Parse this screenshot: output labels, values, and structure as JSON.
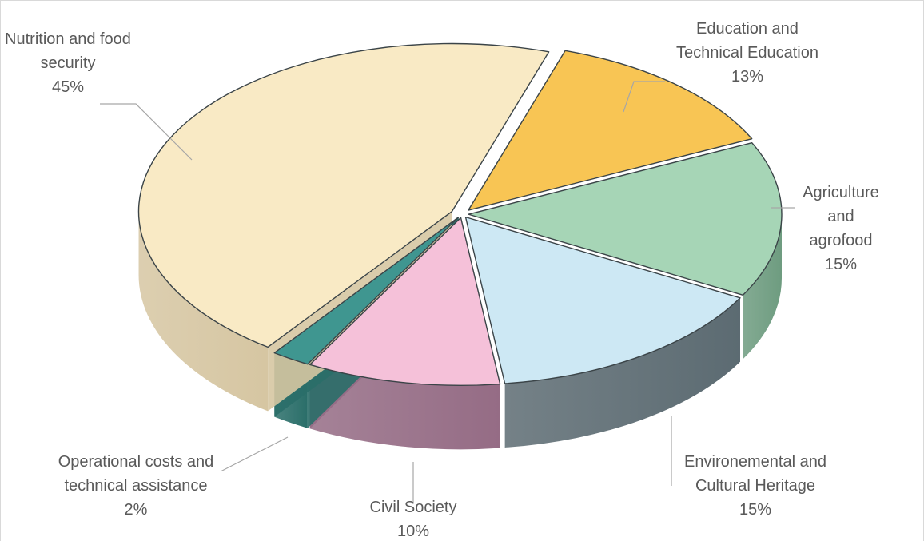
{
  "chart_data": {
    "type": "pie",
    "title": "",
    "slices": [
      {
        "name_lines": [
          "Education and",
          "Technical Education"
        ],
        "pct_label": "13%",
        "value": 13,
        "color": "#F8C554",
        "side": "#C99B2D"
      },
      {
        "name_lines": [
          "Agriculture",
          "and",
          "agrofood"
        ],
        "pct_label": "15%",
        "value": 15,
        "color": "#A6D5B6",
        "side": "#6E9C80"
      },
      {
        "name_lines": [
          "Environemental and",
          "Cultural Heritage"
        ],
        "pct_label": "15%",
        "value": 15,
        "color": "#CDE8F4",
        "side": "#5C6B72"
      },
      {
        "name_lines": [
          "Civil Society"
        ],
        "pct_label": "10%",
        "value": 10,
        "color": "#F5C1D9",
        "side": "#956C85"
      },
      {
        "name_lines": [
          "Operational costs and",
          "technical assistance"
        ],
        "pct_label": "2%",
        "value": 2,
        "color": "#3F9690",
        "side": "#2A6E69"
      },
      {
        "name_lines": [
          "Nutrition and food",
          "security"
        ],
        "pct_label": "45%",
        "value": 45,
        "color": "#F9EAC5",
        "side": "#D6C6A2"
      }
    ]
  }
}
